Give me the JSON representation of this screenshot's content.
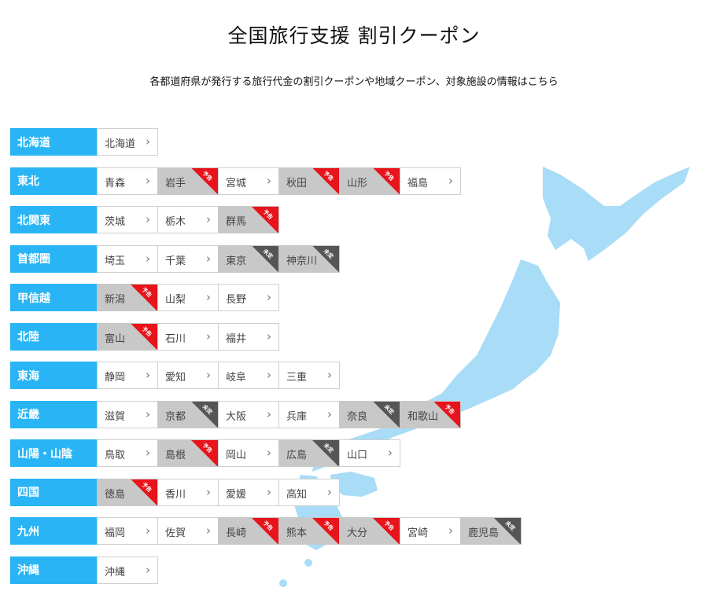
{
  "title": "全国旅行支援 割引クーポン",
  "subtitle": "各都道府県が発行する旅行代金の割引クーポンや地域クーポン、対象施設の情報はこちら",
  "colors": {
    "region_label": "#29b5f5",
    "badge_planned": "#e8141b",
    "badge_undecided": "#555555",
    "map": "#a9dcf6",
    "disabled_cell": "#c8c8c8"
  },
  "regions": [
    {
      "name": "北海道",
      "prefs": [
        {
          "name": "北海道",
          "status": "active",
          "badge": ""
        }
      ]
    },
    {
      "name": "東北",
      "prefs": [
        {
          "name": "青森",
          "status": "active",
          "badge": ""
        },
        {
          "name": "岩手",
          "status": "grey",
          "badge": "予告"
        },
        {
          "name": "宮城",
          "status": "active",
          "badge": ""
        },
        {
          "name": "秋田",
          "status": "grey",
          "badge": "予告"
        },
        {
          "name": "山形",
          "status": "grey",
          "badge": "予告"
        },
        {
          "name": "福島",
          "status": "active",
          "badge": ""
        }
      ]
    },
    {
      "name": "北関東",
      "prefs": [
        {
          "name": "茨城",
          "status": "active",
          "badge": ""
        },
        {
          "name": "栃木",
          "status": "active",
          "badge": ""
        },
        {
          "name": "群馬",
          "status": "grey",
          "badge": "予告"
        }
      ]
    },
    {
      "name": "首都圏",
      "prefs": [
        {
          "name": "埼玉",
          "status": "active",
          "badge": ""
        },
        {
          "name": "千葉",
          "status": "active",
          "badge": ""
        },
        {
          "name": "東京",
          "status": "grey",
          "badge": "未定"
        },
        {
          "name": "神奈川",
          "status": "grey",
          "badge": "未定"
        }
      ]
    },
    {
      "name": "甲信越",
      "prefs": [
        {
          "name": "新潟",
          "status": "grey",
          "badge": "予告"
        },
        {
          "name": "山梨",
          "status": "active",
          "badge": ""
        },
        {
          "name": "長野",
          "status": "active",
          "badge": ""
        }
      ]
    },
    {
      "name": "北陸",
      "prefs": [
        {
          "name": "富山",
          "status": "grey",
          "badge": "予告"
        },
        {
          "name": "石川",
          "status": "active",
          "badge": ""
        },
        {
          "name": "福井",
          "status": "active",
          "badge": ""
        }
      ]
    },
    {
      "name": "東海",
      "prefs": [
        {
          "name": "静岡",
          "status": "active",
          "badge": ""
        },
        {
          "name": "愛知",
          "status": "active",
          "badge": ""
        },
        {
          "name": "岐阜",
          "status": "active",
          "badge": ""
        },
        {
          "name": "三重",
          "status": "active",
          "badge": ""
        }
      ]
    },
    {
      "name": "近畿",
      "prefs": [
        {
          "name": "滋賀",
          "status": "active",
          "badge": ""
        },
        {
          "name": "京都",
          "status": "grey",
          "badge": "未定"
        },
        {
          "name": "大阪",
          "status": "active",
          "badge": ""
        },
        {
          "name": "兵庫",
          "status": "active",
          "badge": ""
        },
        {
          "name": "奈良",
          "status": "grey",
          "badge": "未定"
        },
        {
          "name": "和歌山",
          "status": "grey",
          "badge": "予告"
        }
      ]
    },
    {
      "name": "山陽・山陰",
      "prefs": [
        {
          "name": "鳥取",
          "status": "active",
          "badge": ""
        },
        {
          "name": "島根",
          "status": "grey",
          "badge": "予告"
        },
        {
          "name": "岡山",
          "status": "active",
          "badge": ""
        },
        {
          "name": "広島",
          "status": "grey",
          "badge": "未定"
        },
        {
          "name": "山口",
          "status": "active",
          "badge": ""
        }
      ]
    },
    {
      "name": "四国",
      "prefs": [
        {
          "name": "徳島",
          "status": "grey",
          "badge": "予告"
        },
        {
          "name": "香川",
          "status": "active",
          "badge": ""
        },
        {
          "name": "愛媛",
          "status": "active",
          "badge": ""
        },
        {
          "name": "高知",
          "status": "active",
          "badge": ""
        }
      ]
    },
    {
      "name": "九州",
      "prefs": [
        {
          "name": "福岡",
          "status": "active",
          "badge": ""
        },
        {
          "name": "佐賀",
          "status": "active",
          "badge": ""
        },
        {
          "name": "長崎",
          "status": "grey",
          "badge": "予告"
        },
        {
          "name": "熊本",
          "status": "grey",
          "badge": "予告"
        },
        {
          "name": "大分",
          "status": "grey",
          "badge": "予告"
        },
        {
          "name": "宮崎",
          "status": "active",
          "badge": ""
        },
        {
          "name": "鹿児島",
          "status": "grey",
          "badge": "未定"
        }
      ]
    },
    {
      "name": "沖縄",
      "prefs": [
        {
          "name": "沖縄",
          "status": "active",
          "badge": ""
        }
      ]
    }
  ]
}
